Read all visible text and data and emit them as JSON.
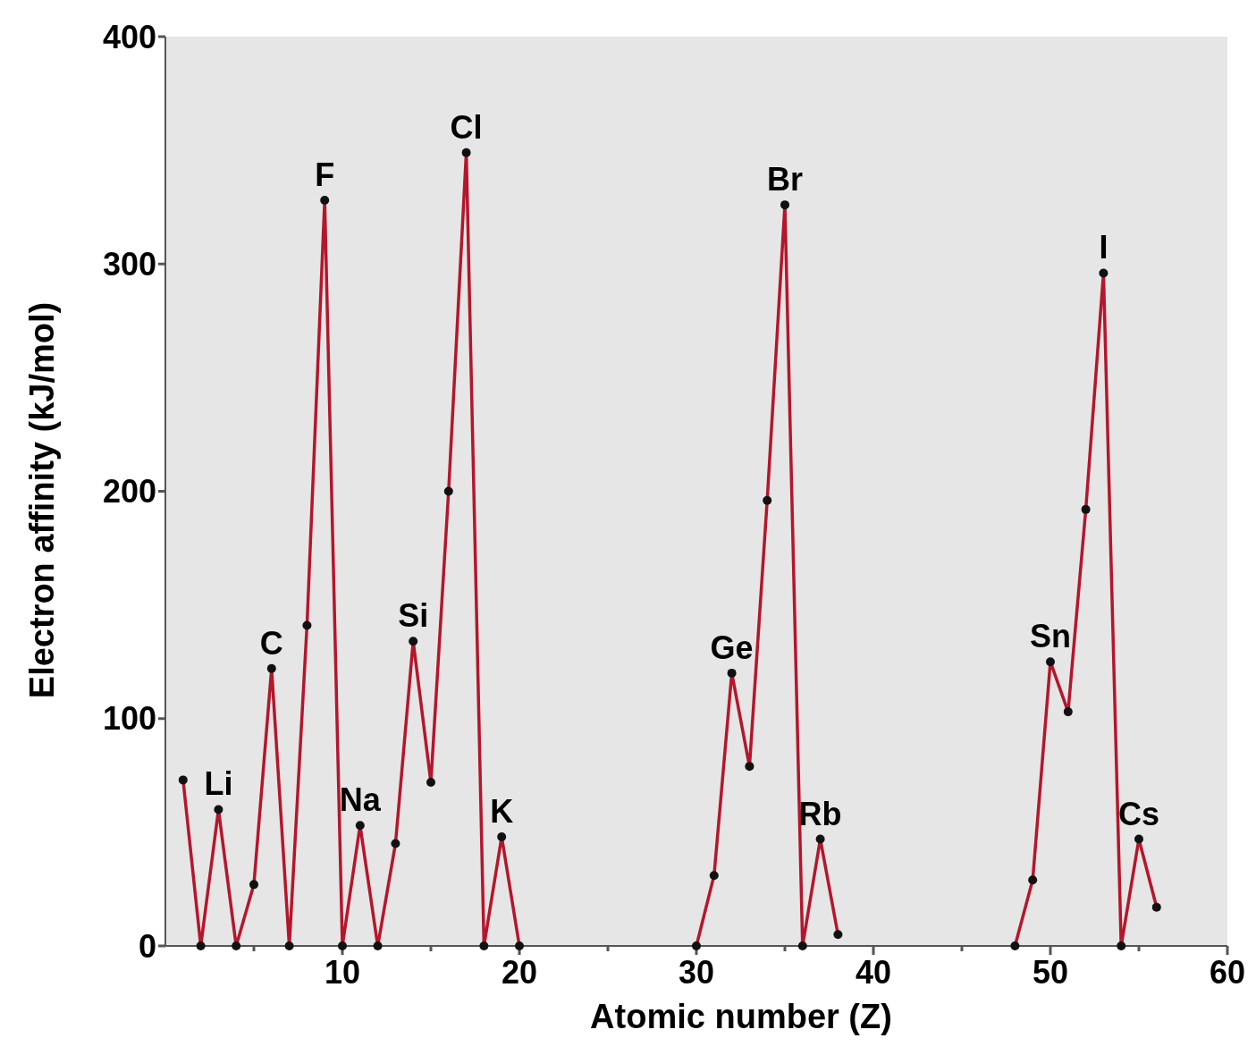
{
  "chart_data": {
    "type": "line",
    "xlabel": "Atomic number (Z)",
    "ylabel": "Electron affinity (kJ/mol)",
    "series": [
      {
        "color": "#b5162b",
        "x": [
          1,
          2,
          3,
          4,
          5,
          6,
          7,
          8,
          9,
          10,
          11,
          12,
          13,
          14,
          15,
          16,
          17,
          18,
          19,
          20
        ],
        "values": [
          73,
          0,
          60,
          0,
          27,
          122,
          0,
          141,
          328,
          0,
          53,
          0,
          45,
          134,
          72,
          200,
          349,
          0,
          48,
          0
        ]
      },
      {
        "color": "#b5162b",
        "x": [
          30,
          31,
          32,
          33,
          34,
          35,
          36,
          37,
          38
        ],
        "values": [
          0,
          31,
          120,
          79,
          196,
          326,
          0,
          47,
          5
        ]
      },
      {
        "color": "#b5162b",
        "x": [
          48,
          49,
          50,
          51,
          52,
          53,
          54,
          55,
          56
        ],
        "values": [
          0,
          29,
          125,
          103,
          192,
          296,
          0,
          47,
          17
        ]
      }
    ],
    "xlim": [
      0,
      60
    ],
    "xticks": [
      {
        "value": 5,
        "label": null
      },
      10,
      {
        "value": 15,
        "label": null
      },
      20,
      {
        "value": 25,
        "label": null
      },
      30,
      {
        "value": 35,
        "label": null
      },
      40,
      {
        "value": 45,
        "label": null
      },
      50,
      {
        "value": 55,
        "label": null
      },
      60
    ],
    "ylim": [
      0,
      400
    ],
    "yticks": [
      0,
      100,
      200,
      300,
      400
    ],
    "marker": "circle",
    "grid": false,
    "annotations": [
      {
        "text": "Li",
        "x": 3,
        "y": 60
      },
      {
        "text": "C",
        "x": 6,
        "y": 122
      },
      {
        "text": "F",
        "x": 9,
        "y": 328
      },
      {
        "text": "Na",
        "x": 11,
        "y": 53
      },
      {
        "text": "Si",
        "x": 14,
        "y": 134
      },
      {
        "text": "Cl",
        "x": 17,
        "y": 349
      },
      {
        "text": "K",
        "x": 19,
        "y": 48
      },
      {
        "text": "Ge",
        "x": 32,
        "y": 120
      },
      {
        "text": "Br",
        "x": 35,
        "y": 326
      },
      {
        "text": "Rb",
        "x": 37,
        "y": 47
      },
      {
        "text": "Sn",
        "x": 50,
        "y": 125
      },
      {
        "text": "I",
        "x": 53,
        "y": 296
      },
      {
        "text": "Cs",
        "x": 55,
        "y": 47
      }
    ]
  }
}
